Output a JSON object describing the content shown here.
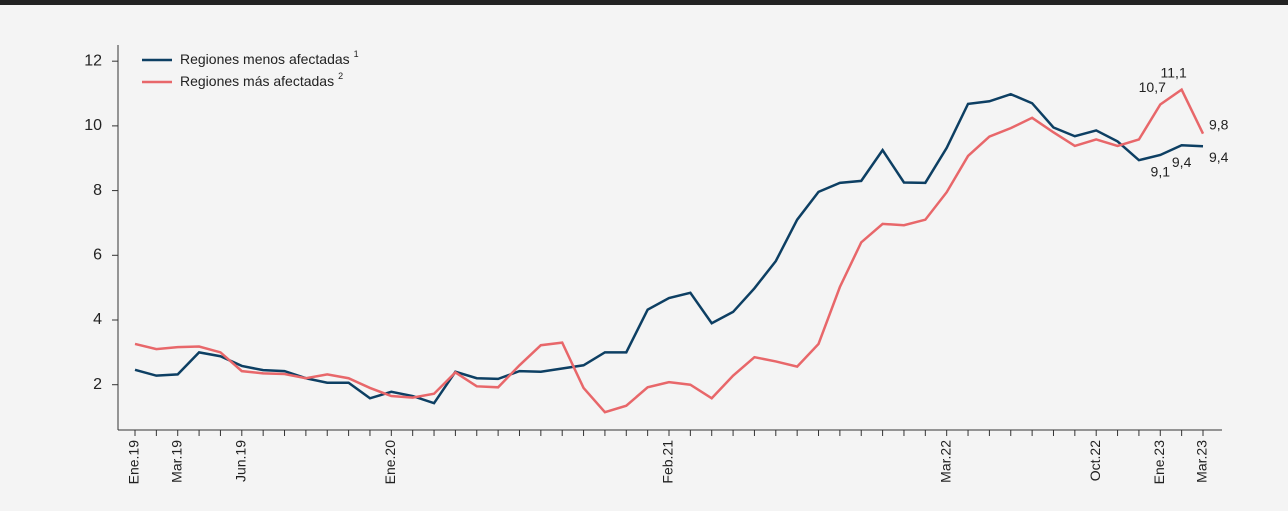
{
  "chart_data": {
    "type": "line",
    "categories": [
      "Ene.19",
      null,
      "Mar.19",
      null,
      null,
      "Jun.19",
      null,
      null,
      null,
      null,
      null,
      null,
      "Ene.20",
      null,
      null,
      null,
      null,
      null,
      null,
      null,
      null,
      null,
      null,
      null,
      null,
      "Feb.21",
      null,
      null,
      null,
      null,
      null,
      null,
      null,
      null,
      null,
      null,
      null,
      null,
      "Mar.22",
      null,
      null,
      null,
      null,
      null,
      null,
      "Oct.22",
      null,
      null,
      "Ene.23",
      null,
      "Mar.23"
    ],
    "series": [
      {
        "name": "Regiones menos afectadas",
        "footnote": "1",
        "color": "#0d3f63",
        "values": [
          2.46,
          2.28,
          2.32,
          3.0,
          2.88,
          2.58,
          2.45,
          2.42,
          2.2,
          2.06,
          2.06,
          1.58,
          1.78,
          1.65,
          1.43,
          2.4,
          2.2,
          2.18,
          2.42,
          2.4,
          2.5,
          2.6,
          3.0,
          3.0,
          4.32,
          4.68,
          4.84,
          3.9,
          4.25,
          4.98,
          5.82,
          7.1,
          7.96,
          8.24,
          8.3,
          9.25,
          8.25,
          8.24,
          9.32,
          10.68,
          10.76,
          10.98,
          10.7,
          9.95,
          9.68,
          9.86,
          9.52,
          8.94,
          9.1,
          9.4,
          9.37
        ],
        "value_labels": [
          null,
          null,
          null,
          null,
          null,
          null,
          null,
          null,
          null,
          null,
          null,
          null,
          null,
          null,
          null,
          null,
          null,
          null,
          null,
          null,
          null,
          null,
          null,
          null,
          null,
          null,
          null,
          null,
          null,
          null,
          null,
          null,
          null,
          null,
          null,
          null,
          null,
          null,
          null,
          null,
          null,
          null,
          null,
          null,
          null,
          null,
          null,
          null,
          "9,1",
          "9,4",
          "9,4"
        ]
      },
      {
        "name": "Regiones más afectadas",
        "footnote": "2",
        "color": "#e8676a",
        "values": [
          3.26,
          3.1,
          3.16,
          3.18,
          3.0,
          2.42,
          2.35,
          2.33,
          2.2,
          2.32,
          2.2,
          1.9,
          1.65,
          1.6,
          1.72,
          2.38,
          1.95,
          1.92,
          2.6,
          3.22,
          3.3,
          1.9,
          1.15,
          1.35,
          1.92,
          2.08,
          2.0,
          1.58,
          2.28,
          2.85,
          2.72,
          2.56,
          3.26,
          5.02,
          6.4,
          6.97,
          6.93,
          7.1,
          7.95,
          9.07,
          9.67,
          9.93,
          10.25,
          9.8,
          9.38,
          9.58,
          9.38,
          9.58,
          10.66,
          11.12,
          9.76
        ],
        "value_labels": [
          null,
          null,
          null,
          null,
          null,
          null,
          null,
          null,
          null,
          null,
          null,
          null,
          null,
          null,
          null,
          null,
          null,
          null,
          null,
          null,
          null,
          null,
          null,
          null,
          null,
          null,
          null,
          null,
          null,
          null,
          null,
          null,
          null,
          null,
          null,
          null,
          null,
          null,
          null,
          null,
          null,
          null,
          null,
          null,
          null,
          null,
          null,
          null,
          "10,7",
          "11,1",
          "9,8"
        ]
      }
    ],
    "ylim": [
      0.6,
      12.5
    ],
    "yticks": [
      2,
      4,
      6,
      8,
      10,
      12
    ],
    "legend": "top-left"
  }
}
